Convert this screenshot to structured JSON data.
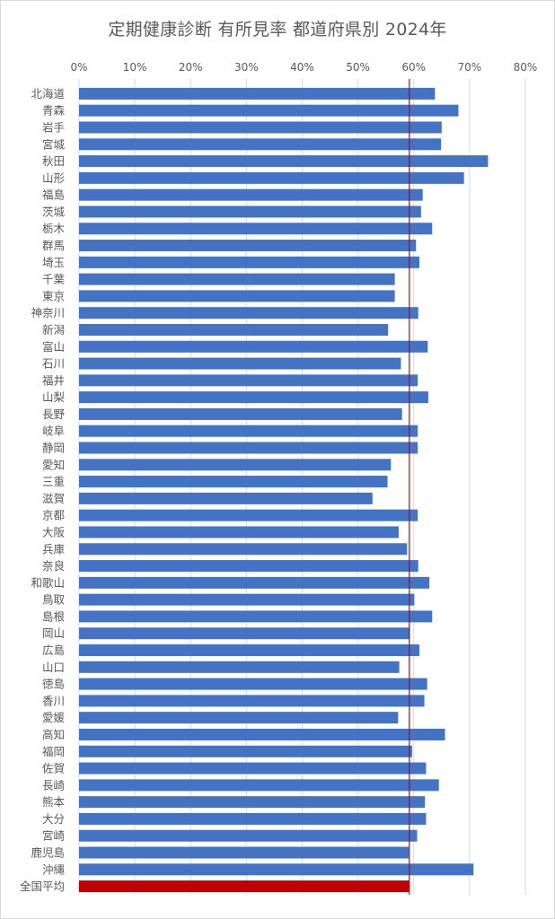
{
  "chart_data": {
    "type": "bar",
    "orientation": "horizontal",
    "title": "定期健康診断 有所見率 都道府県別 2024年",
    "xlim": [
      0,
      0.8
    ],
    "x_ticks": [
      "0%",
      "10%",
      "20%",
      "30%",
      "40%",
      "50%",
      "60%",
      "70%",
      "80%"
    ],
    "x_axis_position": "top",
    "grid": true,
    "reference_line": {
      "value": 0.592,
      "color": "#c00000"
    },
    "bar_color": "#4472c4",
    "highlight_color": "#c00000",
    "highlight_category": "全国平均",
    "categories": [
      "北海道",
      "青森",
      "岩手",
      "宮城",
      "秋田",
      "山形",
      "福島",
      "茨城",
      "栃木",
      "群馬",
      "埼玉",
      "千葉",
      "東京",
      "神奈川",
      "新潟",
      "富山",
      "石川",
      "福井",
      "山梨",
      "長野",
      "岐阜",
      "静岡",
      "愛知",
      "三重",
      "滋賀",
      "京都",
      "大阪",
      "兵庫",
      "奈良",
      "和歌山",
      "鳥取",
      "島根",
      "岡山",
      "広島",
      "山口",
      "徳島",
      "香川",
      "愛媛",
      "高知",
      "福岡",
      "佐賀",
      "長崎",
      "熊本",
      "大分",
      "宮崎",
      "鹿児島",
      "沖縄",
      "全国平均"
    ],
    "values": [
      0.638,
      0.68,
      0.65,
      0.649,
      0.733,
      0.69,
      0.616,
      0.613,
      0.633,
      0.604,
      0.61,
      0.566,
      0.566,
      0.608,
      0.554,
      0.625,
      0.577,
      0.607,
      0.626,
      0.579,
      0.607,
      0.607,
      0.559,
      0.553,
      0.526,
      0.607,
      0.573,
      0.588,
      0.608,
      0.628,
      0.601,
      0.633,
      0.593,
      0.61,
      0.574,
      0.624,
      0.619,
      0.572,
      0.656,
      0.597,
      0.622,
      0.645,
      0.62,
      0.622,
      0.606,
      0.591,
      0.707,
      0.592
    ]
  }
}
